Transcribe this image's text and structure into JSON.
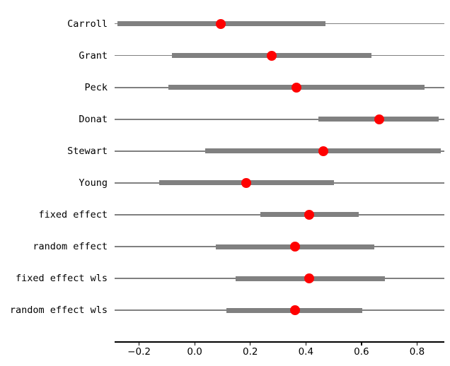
{
  "figure": {
    "background": "#ffffff"
  },
  "chart_data": {
    "type": "forest",
    "orientation": "horizontal",
    "title": "",
    "xlabel": "",
    "ylabel": "",
    "grid": false,
    "legend": false,
    "xlim": [
      -0.288,
      0.898
    ],
    "x_ticks": [
      -0.2,
      0.0,
      0.2,
      0.4,
      0.6,
      0.8
    ],
    "x_tick_labels": [
      "−0.2",
      "0.0",
      "0.2",
      "0.4",
      "0.6",
      "0.8"
    ],
    "rows": [
      {
        "label": "Carroll",
        "estimate": 0.095,
        "ci_low": -0.277,
        "ci_high": 0.47
      },
      {
        "label": "Grant",
        "estimate": 0.277,
        "ci_low": -0.081,
        "ci_high": 0.636
      },
      {
        "label": "Peck",
        "estimate": 0.367,
        "ci_low": -0.094,
        "ci_high": 0.827
      },
      {
        "label": "Donat",
        "estimate": 0.664,
        "ci_low": 0.445,
        "ci_high": 0.878
      },
      {
        "label": "Stewart",
        "estimate": 0.462,
        "ci_low": 0.037,
        "ci_high": 0.886
      },
      {
        "label": "Young",
        "estimate": 0.185,
        "ci_low": -0.128,
        "ci_high": 0.5
      },
      {
        "label": "fixed effect",
        "estimate": 0.412,
        "ci_low": 0.237,
        "ci_high": 0.59
      },
      {
        "label": "random effect",
        "estimate": 0.36,
        "ci_low": 0.076,
        "ci_high": 0.645
      },
      {
        "label": "fixed effect wls",
        "estimate": 0.412,
        "ci_low": 0.148,
        "ci_high": 0.683
      },
      {
        "label": "random effect wls",
        "estimate": 0.36,
        "ci_low": 0.114,
        "ci_high": 0.602
      }
    ],
    "colors": {
      "marker": "#ff0000",
      "interval_bar": "#808080",
      "reference_line": "#808080",
      "axis": "#000000",
      "text": "#000000"
    }
  }
}
